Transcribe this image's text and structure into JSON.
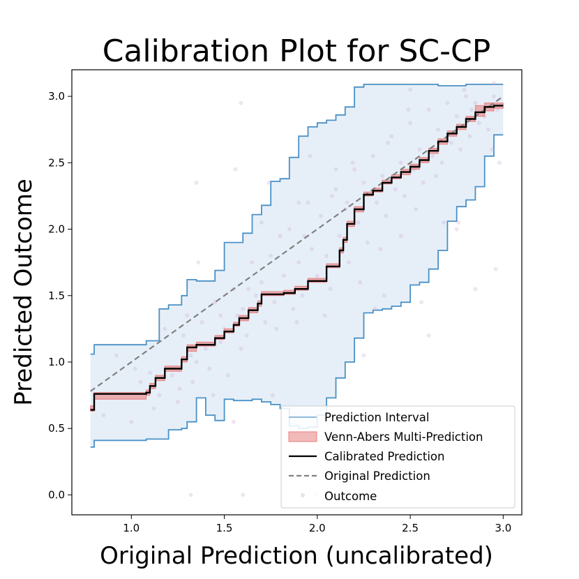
{
  "chart_data": {
    "type": "line",
    "title": "Calibration Plot for SC-CP",
    "xlabel": "Original Prediction (uncalibrated)",
    "ylabel": "Predicted Outcome",
    "xlim": [
      0.68,
      3.1
    ],
    "ylim": [
      -0.15,
      3.2
    ],
    "x_ticks": [
      1.0,
      1.5,
      2.0,
      2.5,
      3.0
    ],
    "x_tick_labels": [
      "1.0",
      "1.5",
      "2.0",
      "2.5",
      "3.0"
    ],
    "y_ticks": [
      0.0,
      0.5,
      1.0,
      1.5,
      2.0,
      2.5,
      3.0
    ],
    "y_tick_labels": [
      "0.0",
      "0.5",
      "1.0",
      "1.5",
      "2.0",
      "2.5",
      "3.0"
    ],
    "grid": false,
    "legend_position": "lower-right",
    "colors": {
      "interval_line": "#4a90c6",
      "interval_fill": "#dbe8f5",
      "venn_abers": "#e87f7f",
      "calibrated": "#000000",
      "original": "#808080",
      "outcome": "#c9a0d0"
    },
    "series": [
      {
        "name": "Prediction Interval",
        "kind": "interval",
        "x": [
          0.78,
          0.8,
          1.08,
          1.15,
          1.2,
          1.27,
          1.3,
          1.35,
          1.4,
          1.45,
          1.5,
          1.55,
          1.6,
          1.65,
          1.7,
          1.75,
          1.8,
          1.85,
          1.9,
          1.95,
          2.0,
          2.05,
          2.1,
          2.15,
          2.2,
          2.25,
          2.3,
          2.35,
          2.4,
          2.45,
          2.5,
          2.55,
          2.6,
          2.65,
          2.7,
          2.75,
          2.8,
          2.85,
          2.9,
          2.95,
          3.0
        ],
        "lower": [
          0.36,
          0.41,
          0.42,
          0.42,
          0.49,
          0.5,
          0.55,
          0.73,
          0.6,
          0.56,
          0.72,
          0.71,
          0.71,
          0.72,
          0.7,
          0.68,
          0.65,
          0.52,
          0.5,
          0.51,
          0.6,
          0.73,
          0.88,
          1.0,
          1.18,
          1.37,
          1.39,
          1.4,
          1.42,
          1.45,
          1.58,
          1.6,
          1.7,
          1.84,
          2.06,
          2.17,
          2.22,
          2.32,
          2.55,
          2.71,
          2.71
        ],
        "upper": [
          1.06,
          1.13,
          1.16,
          1.4,
          1.43,
          1.5,
          1.62,
          1.61,
          1.61,
          1.69,
          1.9,
          1.9,
          1.97,
          2.11,
          2.18,
          2.36,
          2.38,
          2.54,
          2.7,
          2.77,
          2.8,
          2.82,
          2.86,
          2.92,
          3.07,
          3.09,
          3.09,
          3.09,
          3.09,
          3.09,
          3.09,
          3.09,
          3.09,
          3.08,
          3.08,
          3.08,
          3.09,
          3.09,
          3.09,
          3.09,
          3.09
        ]
      },
      {
        "name": "Venn-Abers Multi-Prediction",
        "kind": "band",
        "x": [
          0.78,
          0.8,
          1.08,
          1.1,
          1.13,
          1.18,
          1.27,
          1.3,
          1.35,
          1.45,
          1.5,
          1.55,
          1.58,
          1.63,
          1.68,
          1.7,
          1.75,
          1.82,
          1.88,
          1.95,
          2.05,
          2.12,
          2.14,
          2.16,
          2.2,
          2.25,
          2.3,
          2.35,
          2.4,
          2.45,
          2.5,
          2.55,
          2.6,
          2.65,
          2.7,
          2.75,
          2.8,
          2.85,
          2.9,
          2.95,
          3.0
        ],
        "lower": [
          0.63,
          0.72,
          0.75,
          0.8,
          0.86,
          0.93,
          1.0,
          1.08,
          1.12,
          1.17,
          1.22,
          1.27,
          1.31,
          1.37,
          1.42,
          1.5,
          1.5,
          1.51,
          1.54,
          1.6,
          1.71,
          1.82,
          1.9,
          2.02,
          2.13,
          2.25,
          2.28,
          2.34,
          2.38,
          2.41,
          2.45,
          2.5,
          2.57,
          2.64,
          2.7,
          2.75,
          2.81,
          2.85,
          2.89,
          2.91,
          2.92
        ],
        "upper": [
          0.67,
          0.77,
          0.79,
          0.84,
          0.9,
          0.97,
          1.04,
          1.13,
          1.15,
          1.2,
          1.25,
          1.3,
          1.35,
          1.41,
          1.46,
          1.53,
          1.53,
          1.54,
          1.57,
          1.63,
          1.74,
          1.86,
          1.94,
          2.06,
          2.17,
          2.28,
          2.31,
          2.37,
          2.41,
          2.45,
          2.49,
          2.54,
          2.61,
          2.68,
          2.74,
          2.79,
          2.85,
          2.93,
          2.95,
          2.95,
          2.95
        ]
      },
      {
        "name": "Calibrated Prediction",
        "kind": "step",
        "x": [
          0.78,
          0.8,
          1.08,
          1.1,
          1.13,
          1.18,
          1.27,
          1.3,
          1.35,
          1.45,
          1.5,
          1.55,
          1.58,
          1.63,
          1.68,
          1.7,
          1.75,
          1.82,
          1.88,
          1.95,
          2.05,
          2.12,
          2.14,
          2.16,
          2.2,
          2.25,
          2.3,
          2.35,
          2.4,
          2.45,
          2.5,
          2.55,
          2.6,
          2.65,
          2.7,
          2.75,
          2.8,
          2.85,
          2.9,
          2.95,
          3.0
        ],
        "y": [
          0.64,
          0.76,
          0.77,
          0.82,
          0.88,
          0.95,
          1.02,
          1.11,
          1.13,
          1.18,
          1.23,
          1.28,
          1.33,
          1.39,
          1.44,
          1.51,
          1.51,
          1.52,
          1.55,
          1.61,
          1.72,
          1.84,
          1.92,
          2.04,
          2.15,
          2.26,
          2.29,
          2.35,
          2.39,
          2.43,
          2.47,
          2.52,
          2.59,
          2.66,
          2.72,
          2.77,
          2.83,
          2.88,
          2.92,
          2.93,
          2.93
        ]
      },
      {
        "name": "Original Prediction",
        "kind": "dashed",
        "x": [
          0.78,
          3.0
        ],
        "y": [
          0.78,
          3.0
        ]
      },
      {
        "name": "Outcome",
        "kind": "scatter",
        "x": [
          0.85,
          0.92,
          1.0,
          1.05,
          1.1,
          1.12,
          1.18,
          1.22,
          1.25,
          1.28,
          1.3,
          1.33,
          1.35,
          1.38,
          1.4,
          1.42,
          1.45,
          1.48,
          1.5,
          1.52,
          1.55,
          1.57,
          1.6,
          1.62,
          1.65,
          1.67,
          1.7,
          1.72,
          1.75,
          1.77,
          1.8,
          1.82,
          1.85,
          1.87,
          1.9,
          1.92,
          1.95,
          1.97,
          2.0,
          2.02,
          2.05,
          2.07,
          2.1,
          2.12,
          2.15,
          2.17,
          2.2,
          2.22,
          2.25,
          2.27,
          2.3,
          2.32,
          2.35,
          2.37,
          2.4,
          2.42,
          2.45,
          2.47,
          2.5,
          2.52,
          2.55,
          2.57,
          2.6,
          2.62,
          2.65,
          2.67,
          2.7,
          2.72,
          2.75,
          2.77,
          2.8,
          2.82,
          2.85,
          2.87,
          2.9,
          2.92,
          2.95,
          2.97,
          1.15,
          1.32,
          1.48,
          1.63,
          1.78,
          1.93,
          2.08,
          2.23,
          2.38,
          2.53,
          2.68,
          2.83,
          2.98,
          1.02,
          1.26,
          1.44,
          1.59,
          1.74,
          1.89,
          2.04,
          2.19,
          2.34,
          2.49,
          2.64,
          2.79,
          2.94,
          1.36,
          1.56,
          1.76,
          1.96,
          2.16,
          2.36,
          2.56,
          2.76,
          2.96,
          1.6,
          1.99,
          2.5,
          2.95,
          1.35,
          2.6,
          1.7,
          2.25,
          1.9,
          2.75,
          1.55,
          2.1,
          2.45,
          2.85,
          1.32,
          1.59,
          2.31
        ],
        "y": [
          0.6,
          1.05,
          0.55,
          0.85,
          0.92,
          0.65,
          1.25,
          0.9,
          0.7,
          1.2,
          1.35,
          0.85,
          1.0,
          1.3,
          1.1,
          0.95,
          1.45,
          1.15,
          1.25,
          0.9,
          1.55,
          1.35,
          1.4,
          1.2,
          1.75,
          1.5,
          1.6,
          1.3,
          1.8,
          1.45,
          1.95,
          1.65,
          2.0,
          1.4,
          1.75,
          1.5,
          2.2,
          1.85,
          1.65,
          2.1,
          1.8,
          1.55,
          2.3,
          1.95,
          2.15,
          1.75,
          2.45,
          2.05,
          2.35,
          1.9,
          2.55,
          2.2,
          2.4,
          2.1,
          2.7,
          2.3,
          2.5,
          2.25,
          2.8,
          2.45,
          2.6,
          2.35,
          2.9,
          2.55,
          2.75,
          2.5,
          2.95,
          2.65,
          2.85,
          2.6,
          3.0,
          2.7,
          2.95,
          2.8,
          2.85,
          2.75,
          3.0,
          2.9,
          0.75,
          1.05,
          1.35,
          1.55,
          1.25,
          1.95,
          2.25,
          1.6,
          2.65,
          2.15,
          2.05,
          2.9,
          2.5,
          0.95,
          0.8,
          0.75,
          1.1,
          2.35,
          1.3,
          1.35,
          2.5,
          1.85,
          2.9,
          2.4,
          3.05,
          2.6,
          1.75,
          2.45,
          0.75,
          2.55,
          2.2,
          1.5,
          1.45,
          2.05,
          1.7,
          0.0,
          0.0,
          3.05,
          3.1,
          2.35,
          1.2,
          2.05,
          1.05,
          2.2,
          2.0,
          0.55,
          2.45,
          1.95,
          1.55,
          0.0,
          2.95,
          1.4
        ]
      }
    ]
  },
  "legend": {
    "items": [
      {
        "label": "Prediction Interval"
      },
      {
        "label": "Venn-Abers Multi-Prediction"
      },
      {
        "label": "Calibrated Prediction"
      },
      {
        "label": "Original Prediction"
      },
      {
        "label": "Outcome"
      }
    ]
  }
}
